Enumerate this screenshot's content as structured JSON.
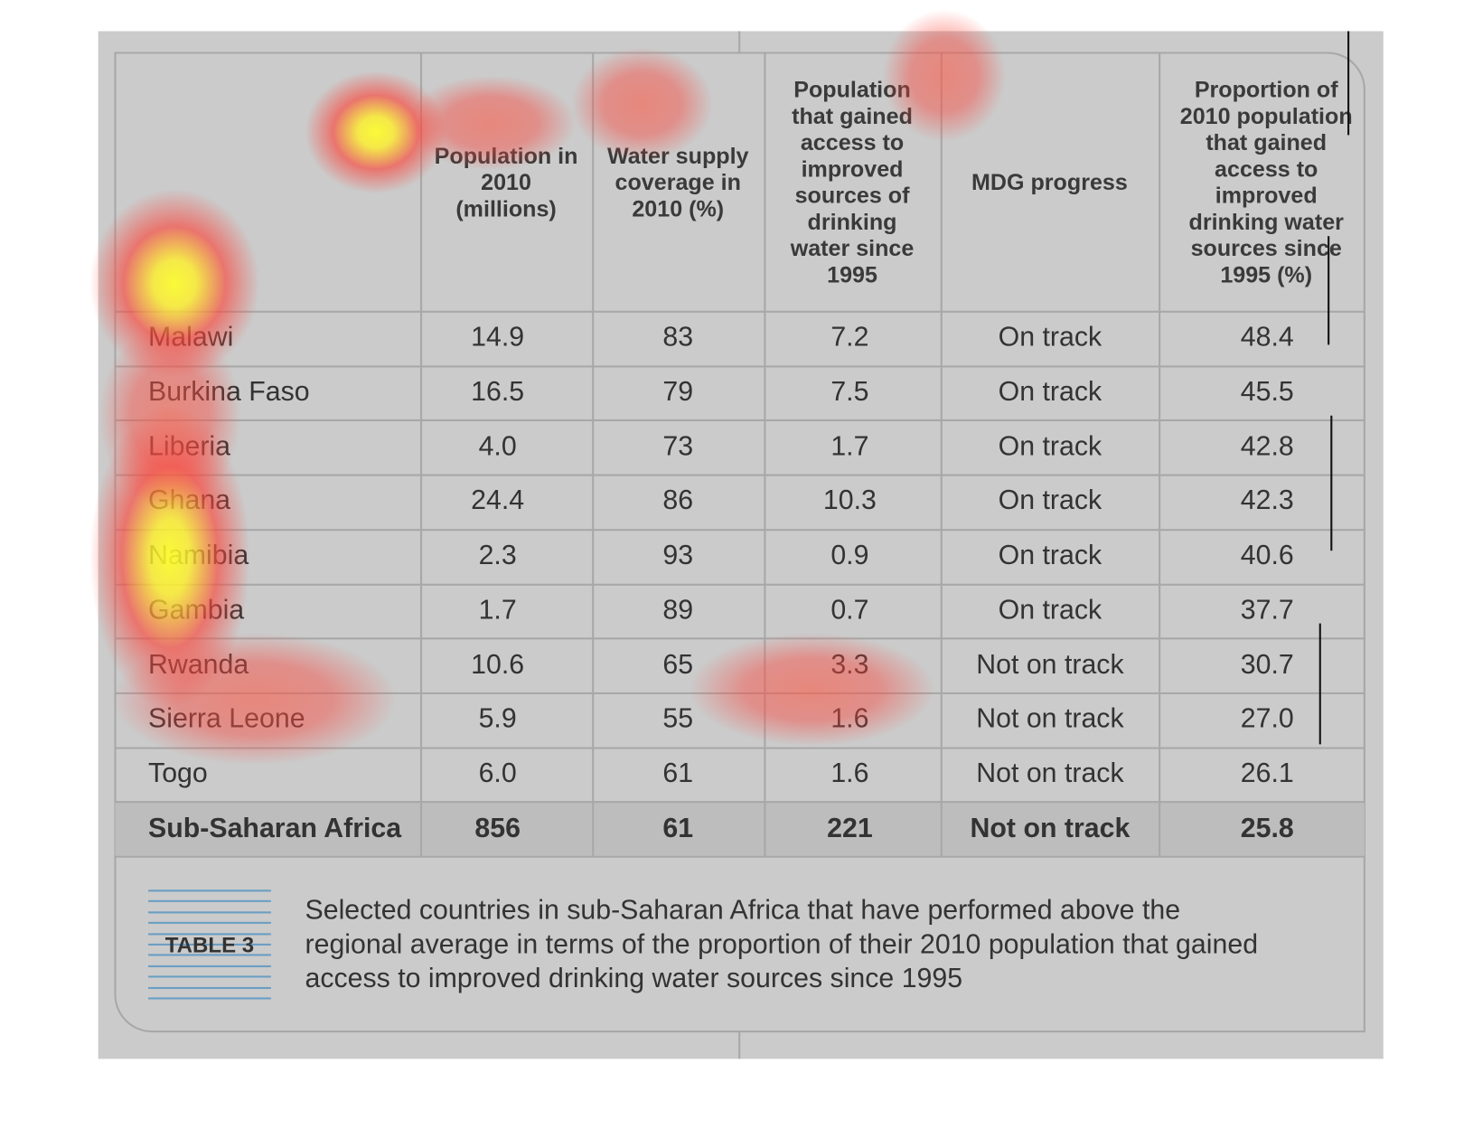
{
  "table": {
    "headers": [
      "Population in 2010 (millions)",
      "Water supply coverage in 2010 (%)",
      "Population that gained access to improved sources of drinking water since 1995",
      "MDG progress",
      "Proportion of 2010 population that gained access to improved drinking water sources since 1995 (%)"
    ],
    "rows": [
      [
        "Malawi",
        "14.9",
        "83",
        "7.2",
        "On track",
        "48.4"
      ],
      [
        "Burkina Faso",
        "16.5",
        "79",
        "7.5",
        "On track",
        "45.5"
      ],
      [
        "Liberia",
        "4.0",
        "73",
        "1.7",
        "On track",
        "42.8"
      ],
      [
        "Ghana",
        "24.4",
        "86",
        "10.3",
        "On track",
        "42.3"
      ],
      [
        "Namibia",
        "2.3",
        "93",
        "0.9",
        "On track",
        "40.6"
      ],
      [
        "Gambia",
        "1.7",
        "89",
        "0.7",
        "On track",
        "37.7"
      ],
      [
        "Rwanda",
        "10.6",
        "65",
        "3.3",
        "Not on track",
        "30.7"
      ],
      [
        "Sierra Leone",
        "5.9",
        "55",
        "1.6",
        "Not on track",
        "27.0"
      ],
      [
        "Togo",
        "6.0",
        "61",
        "1.6",
        "Not on track",
        "26.1"
      ]
    ],
    "total": [
      "Sub-Saharan Africa",
      "856",
      "61",
      "221",
      "Not on track",
      "25.8"
    ]
  },
  "caption": {
    "label": "TABLE 3",
    "text": "Selected countries in sub-Saharan Africa that have performed above the regional average in terms of the proportion of their 2010 population that gained access to improved drinking water sources since 1995"
  }
}
